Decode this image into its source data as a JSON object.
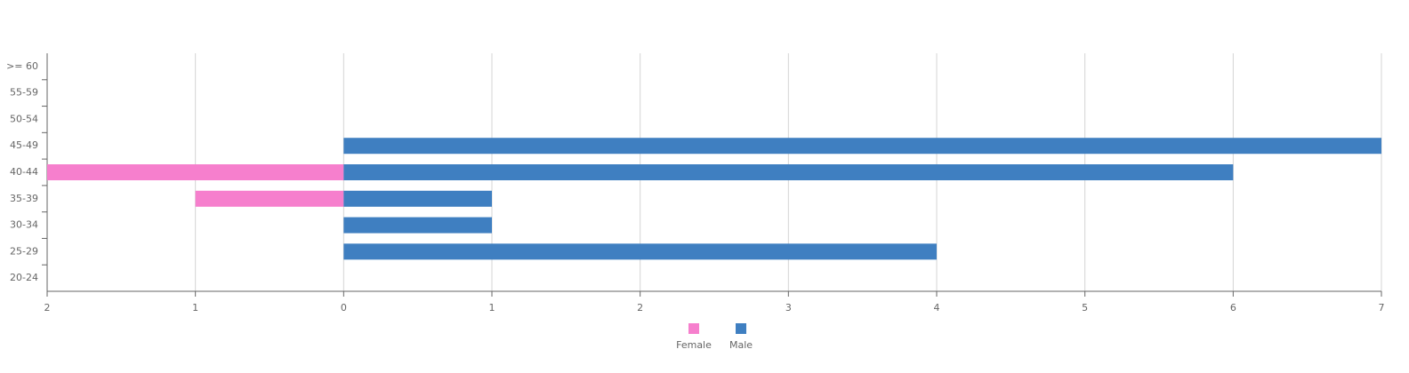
{
  "chart_data": {
    "type": "bar",
    "orientation": "horizontal",
    "stacked": false,
    "categories": [
      ">= 60",
      "55-59",
      "50-54",
      "45-49",
      "40-44",
      "35-39",
      "30-34",
      "25-29",
      "20-24"
    ],
    "series": [
      {
        "name": "Female",
        "color": "#f67fcd",
        "values": [
          0,
          0,
          0,
          0,
          -2,
          -1,
          0,
          0,
          0
        ]
      },
      {
        "name": "Male",
        "color": "#3f7fc1",
        "values": [
          0,
          0,
          0,
          7,
          6,
          1,
          1,
          4,
          0
        ]
      }
    ],
    "xlim": [
      -2,
      7
    ],
    "xticks": [
      {
        "value": -2,
        "label": "2"
      },
      {
        "value": -1,
        "label": "1"
      },
      0,
      1,
      2,
      3,
      4,
      5,
      6,
      7
    ],
    "grid": true,
    "legend": "bottom"
  }
}
